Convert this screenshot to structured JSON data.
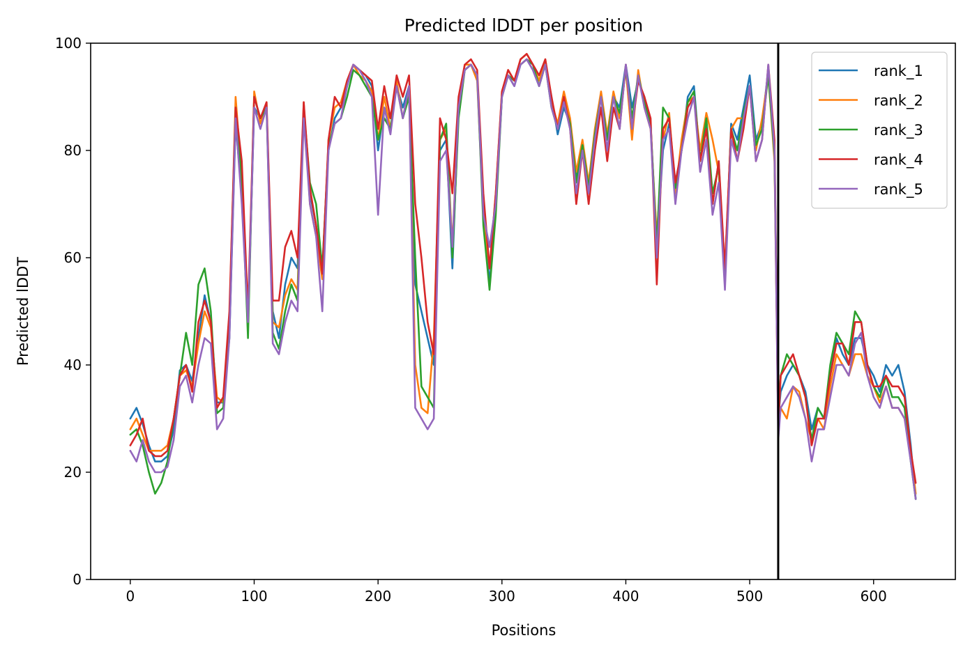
{
  "chart_data": {
    "type": "line",
    "title": "Predicted lDDT per position",
    "xlabel": "Positions",
    "ylabel": "Predicted lDDT",
    "xlim": [
      -32,
      666
    ],
    "ylim": [
      0,
      100
    ],
    "xticks": [
      0,
      100,
      200,
      300,
      400,
      500,
      600
    ],
    "yticks": [
      0,
      20,
      40,
      60,
      80,
      100
    ],
    "grid": false,
    "legend": "top-right",
    "chain_break": 523,
    "x": [
      0,
      5,
      10,
      15,
      20,
      25,
      30,
      35,
      40,
      45,
      50,
      55,
      60,
      65,
      70,
      75,
      80,
      85,
      90,
      95,
      100,
      105,
      110,
      115,
      120,
      125,
      130,
      135,
      140,
      145,
      150,
      155,
      160,
      165,
      170,
      175,
      180,
      185,
      190,
      195,
      200,
      205,
      210,
      215,
      220,
      225,
      230,
      235,
      240,
      245,
      250,
      255,
      260,
      265,
      270,
      275,
      280,
      285,
      290,
      295,
      300,
      305,
      310,
      315,
      320,
      325,
      330,
      335,
      340,
      345,
      350,
      355,
      360,
      365,
      370,
      375,
      380,
      385,
      390,
      395,
      400,
      405,
      410,
      415,
      420,
      425,
      430,
      435,
      440,
      445,
      450,
      455,
      460,
      465,
      470,
      475,
      480,
      485,
      490,
      495,
      500,
      505,
      510,
      515,
      520,
      523,
      525,
      530,
      535,
      540,
      545,
      550,
      555,
      560,
      565,
      570,
      575,
      580,
      585,
      590,
      595,
      600,
      605,
      610,
      615,
      620,
      625,
      630,
      634
    ],
    "series": [
      {
        "name": "rank_1",
        "color": "#1f77b4",
        "values": [
          30,
          32,
          29,
          25,
          22,
          22,
          23,
          28,
          39,
          40,
          37,
          45,
          53,
          48,
          33,
          33,
          45,
          85,
          72,
          48,
          88,
          86,
          88,
          50,
          45,
          55,
          60,
          58,
          88,
          72,
          66,
          58,
          80,
          86,
          88,
          92,
          96,
          95,
          94,
          92,
          80,
          88,
          86,
          92,
          88,
          92,
          55,
          50,
          45,
          40,
          80,
          82,
          58,
          88,
          95,
          96,
          94,
          70,
          55,
          70,
          90,
          94,
          92,
          96,
          97,
          95,
          92,
          96,
          90,
          83,
          88,
          85,
          75,
          80,
          72,
          82,
          90,
          82,
          90,
          88,
          96,
          88,
          93,
          90,
          85,
          62,
          80,
          85,
          74,
          80,
          90,
          92,
          78,
          85,
          70,
          78,
          55,
          85,
          82,
          88,
          94,
          82,
          85,
          95,
          80,
          30,
          35,
          38,
          40,
          38,
          35,
          28,
          32,
          30,
          38,
          45,
          42,
          40,
          45,
          45,
          40,
          38,
          35,
          40,
          38,
          40,
          35,
          25,
          15
        ]
      },
      {
        "name": "rank_2",
        "color": "#ff7f0e",
        "values": [
          28,
          30,
          27,
          24,
          24,
          24,
          25,
          30,
          38,
          39,
          36,
          44,
          50,
          47,
          34,
          33,
          48,
          90,
          75,
          47,
          91,
          85,
          89,
          48,
          47,
          53,
          56,
          54,
          89,
          70,
          64,
          56,
          82,
          88,
          89,
          93,
          96,
          94,
          93,
          91,
          82,
          90,
          84,
          93,
          86,
          91,
          40,
          32,
          31,
          45,
          82,
          84,
          62,
          89,
          96,
          96,
          93,
          68,
          58,
          72,
          91,
          95,
          93,
          97,
          98,
          96,
          93,
          97,
          89,
          85,
          91,
          86,
          76,
          82,
          74,
          84,
          91,
          83,
          91,
          86,
          95,
          82,
          95,
          88,
          84,
          64,
          82,
          87,
          72,
          82,
          89,
          90,
          80,
          87,
          82,
          76,
          58,
          84,
          86,
          86,
          92,
          80,
          86,
          94,
          78,
          28,
          32,
          30,
          36,
          35,
          30,
          26,
          30,
          28,
          36,
          42,
          40,
          38,
          42,
          42,
          38,
          36,
          33,
          36,
          32,
          32,
          30,
          24,
          16
        ]
      },
      {
        "name": "rank_3",
        "color": "#2ca02c",
        "values": [
          27,
          28,
          25,
          20,
          16,
          18,
          22,
          30,
          38,
          46,
          40,
          55,
          58,
          50,
          31,
          32,
          48,
          88,
          74,
          45,
          90,
          86,
          88,
          46,
          43,
          50,
          55,
          52,
          88,
          74,
          70,
          58,
          81,
          85,
          86,
          90,
          95,
          94,
          92,
          90,
          82,
          86,
          84,
          92,
          86,
          90,
          60,
          36,
          34,
          32,
          82,
          85,
          60,
          86,
          95,
          96,
          94,
          66,
          54,
          68,
          90,
          94,
          93,
          96,
          97,
          96,
          92,
          96,
          88,
          84,
          89,
          85,
          74,
          81,
          73,
          83,
          90,
          82,
          90,
          87,
          95,
          86,
          94,
          89,
          85,
          62,
          88,
          86,
          73,
          80,
          89,
          91,
          78,
          86,
          72,
          77,
          56,
          84,
          80,
          87,
          92,
          81,
          84,
          94,
          79,
          30,
          38,
          42,
          40,
          38,
          34,
          26,
          32,
          30,
          40,
          46,
          44,
          42,
          50,
          48,
          40,
          36,
          34,
          38,
          34,
          34,
          32,
          22,
          15
        ]
      },
      {
        "name": "rank_4",
        "color": "#d62728",
        "values": [
          25,
          27,
          30,
          24,
          23,
          23,
          24,
          30,
          38,
          40,
          35,
          48,
          52,
          48,
          32,
          34,
          50,
          88,
          78,
          50,
          90,
          86,
          89,
          52,
          52,
          62,
          65,
          60,
          89,
          73,
          66,
          57,
          82,
          90,
          88,
          93,
          96,
          95,
          94,
          93,
          84,
          92,
          86,
          94,
          90,
          94,
          70,
          60,
          48,
          42,
          86,
          82,
          72,
          90,
          96,
          97,
          95,
          72,
          58,
          72,
          91,
          95,
          93,
          97,
          98,
          96,
          94,
          97,
          90,
          84,
          90,
          84,
          70,
          80,
          70,
          80,
          88,
          78,
          88,
          84,
          96,
          84,
          93,
          90,
          86,
          55,
          84,
          86,
          74,
          80,
          88,
          90,
          78,
          84,
          70,
          78,
          58,
          84,
          78,
          84,
          92,
          78,
          82,
          96,
          82,
          28,
          38,
          40,
          42,
          38,
          34,
          25,
          30,
          30,
          38,
          44,
          44,
          40,
          48,
          48,
          40,
          36,
          36,
          38,
          36,
          36,
          34,
          24,
          18
        ]
      },
      {
        "name": "rank_5",
        "color": "#9467bd",
        "values": [
          24,
          22,
          26,
          22,
          20,
          20,
          21,
          26,
          36,
          38,
          33,
          40,
          45,
          44,
          28,
          30,
          45,
          86,
          70,
          48,
          88,
          84,
          88,
          44,
          42,
          48,
          52,
          50,
          86,
          70,
          64,
          50,
          80,
          85,
          86,
          92,
          96,
          95,
          93,
          90,
          68,
          88,
          83,
          92,
          86,
          92,
          32,
          30,
          28,
          30,
          78,
          80,
          62,
          88,
          95,
          96,
          94,
          68,
          62,
          70,
          90,
          94,
          92,
          96,
          97,
          95,
          92,
          96,
          88,
          84,
          89,
          84,
          72,
          80,
          72,
          82,
          90,
          80,
          90,
          84,
          96,
          84,
          94,
          88,
          84,
          60,
          82,
          84,
          70,
          80,
          86,
          90,
          76,
          82,
          68,
          74,
          54,
          82,
          78,
          86,
          92,
          78,
          82,
          96,
          80,
          26,
          32,
          34,
          36,
          34,
          30,
          22,
          28,
          28,
          34,
          40,
          40,
          38,
          44,
          46,
          38,
          34,
          32,
          36,
          32,
          32,
          30,
          22,
          15
        ]
      }
    ]
  }
}
